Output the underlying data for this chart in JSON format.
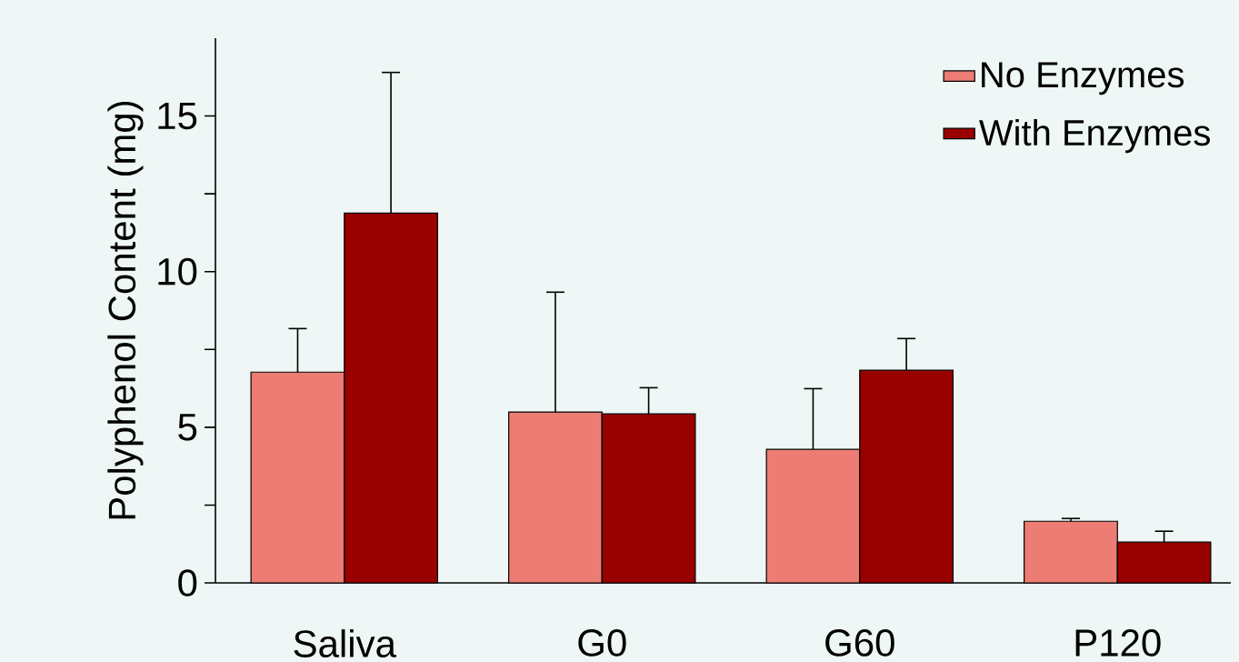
{
  "chart_data": {
    "type": "bar",
    "ylabel": "Polyphenol Content (mg)",
    "categories": [
      "Saliva",
      "G0",
      "G60",
      "P120"
    ],
    "series": [
      {
        "name": "No Enzymes",
        "color": "#ec7c74",
        "values": [
          6.77,
          5.49,
          4.29,
          1.98
        ],
        "errors": [
          [
            6.77,
            8.17
          ],
          [
            5.49,
            9.34
          ],
          [
            4.29,
            6.24
          ],
          [
            1.98,
            2.07
          ]
        ]
      },
      {
        "name": "With Enzymes",
        "color": "#990000",
        "values": [
          11.88,
          5.43,
          6.83,
          1.31
        ],
        "errors": [
          [
            11.88,
            16.4
          ],
          [
            5.43,
            6.27
          ],
          [
            6.83,
            7.85
          ],
          [
            1.31,
            1.66
          ]
        ]
      }
    ],
    "ylim": [
      0,
      17.5
    ],
    "yticks": [
      0,
      {
        "value": 2.5,
        "label": null
      },
      5,
      {
        "value": 7.5,
        "label": null
      },
      10,
      {
        "value": 12.5,
        "label": null
      },
      15
    ],
    "legend": "top right"
  }
}
